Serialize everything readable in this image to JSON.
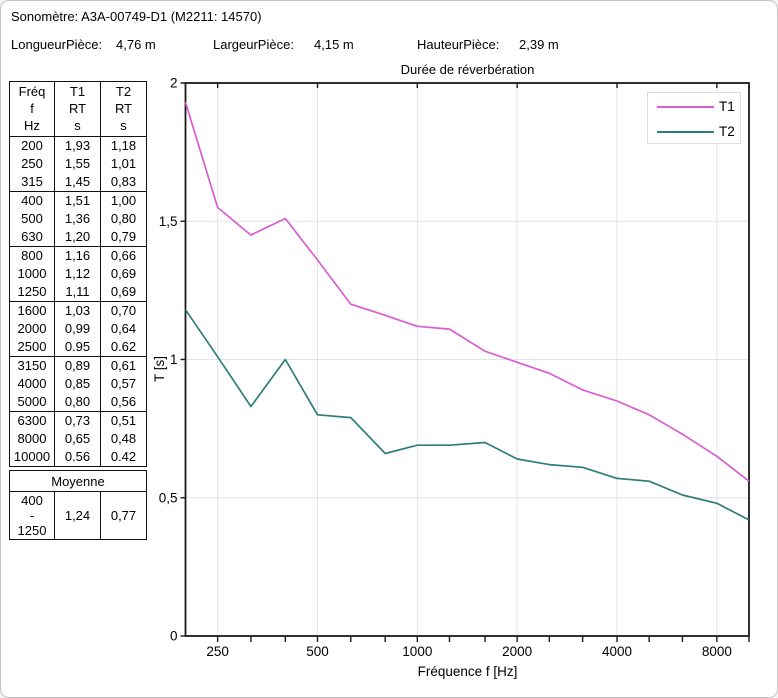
{
  "header": {
    "device": {
      "label": "Sonomètre:",
      "value": "A3A-00749-D1 (M2211: 14570)"
    },
    "length": {
      "label": "LongueurPièce:",
      "value": "4,76 m"
    },
    "width": {
      "label": "LargeurPièce:",
      "value": "4,15 m"
    },
    "height": {
      "label": "HauteurPièce:",
      "value": "2,39 m"
    }
  },
  "table": {
    "columns": [
      [
        "Fréq",
        "f",
        "Hz"
      ],
      [
        "T1",
        "RT",
        "s"
      ],
      [
        "T2",
        "RT",
        "s"
      ]
    ],
    "rows": [
      [
        "200",
        "1,93",
        "1,18"
      ],
      [
        "250",
        "1,55",
        "1,01"
      ],
      [
        "315",
        "1,45",
        "0,83"
      ],
      [
        "400",
        "1,51",
        "1,00"
      ],
      [
        "500",
        "1,36",
        "0,80"
      ],
      [
        "630",
        "1,20",
        "0,79"
      ],
      [
        "800",
        "1,16",
        "0,66"
      ],
      [
        "1000",
        "1,12",
        "0,69"
      ],
      [
        "1250",
        "1,11",
        "0,69"
      ],
      [
        "1600",
        "1,03",
        "0,70"
      ],
      [
        "2000",
        "0,99",
        "0,64"
      ],
      [
        "2500",
        "0.95",
        "0.62"
      ],
      [
        "3150",
        "0,89",
        "0,61"
      ],
      [
        "4000",
        "0,85",
        "0,57"
      ],
      [
        "5000",
        "0,80",
        "0,56"
      ],
      [
        "6300",
        "0,73",
        "0,51"
      ],
      [
        "8000",
        "0,65",
        "0,48"
      ],
      [
        "10000",
        "0.56",
        "0.42"
      ]
    ],
    "group_size": 3,
    "moyenne": {
      "title": "Moyenne",
      "range": [
        "400",
        "-",
        "1250"
      ],
      "t1": "1,24",
      "t2": "0,77"
    }
  },
  "chart_data": {
    "type": "line",
    "title": "Durée de réverbération",
    "xlabel": "Fréquence f [Hz]",
    "ylabel": "T [s]",
    "x_scale": "log",
    "xlim": [
      200,
      10000
    ],
    "ylim": [
      0,
      2
    ],
    "grid": true,
    "legend_position": "top-right",
    "x": [
      200,
      250,
      315,
      400,
      500,
      630,
      800,
      1000,
      1250,
      1600,
      2000,
      2500,
      3150,
      4000,
      5000,
      6300,
      8000,
      10000
    ],
    "x_major_ticks": [
      {
        "value": 250,
        "label": "250"
      },
      {
        "value": 500,
        "label": "500"
      },
      {
        "value": 1000,
        "label": "1000"
      },
      {
        "value": 2000,
        "label": "2000"
      },
      {
        "value": 4000,
        "label": "4000"
      },
      {
        "value": 8000,
        "label": "8000"
      }
    ],
    "y_ticks": [
      {
        "value": 0,
        "label": "0"
      },
      {
        "value": 0.5,
        "label": "0,5"
      },
      {
        "value": 1,
        "label": "1"
      },
      {
        "value": 1.5,
        "label": "1,5"
      },
      {
        "value": 2,
        "label": "2"
      }
    ],
    "y_gridlines": [
      0.5,
      1,
      1.5
    ],
    "colors": {
      "grid": "#e3e3ec",
      "frame": "#1a1a1a"
    },
    "series": [
      {
        "name": "T1",
        "color": "#d95cd3",
        "values": [
          1.93,
          1.55,
          1.45,
          1.51,
          1.36,
          1.2,
          1.16,
          1.12,
          1.11,
          1.03,
          0.99,
          0.95,
          0.89,
          0.85,
          0.8,
          0.73,
          0.65,
          0.56
        ]
      },
      {
        "name": "T2",
        "color": "#2e7d7d",
        "values": [
          1.18,
          1.01,
          0.83,
          1.0,
          0.8,
          0.79,
          0.66,
          0.69,
          0.69,
          0.7,
          0.64,
          0.62,
          0.61,
          0.57,
          0.56,
          0.51,
          0.48,
          0.42
        ]
      }
    ]
  }
}
